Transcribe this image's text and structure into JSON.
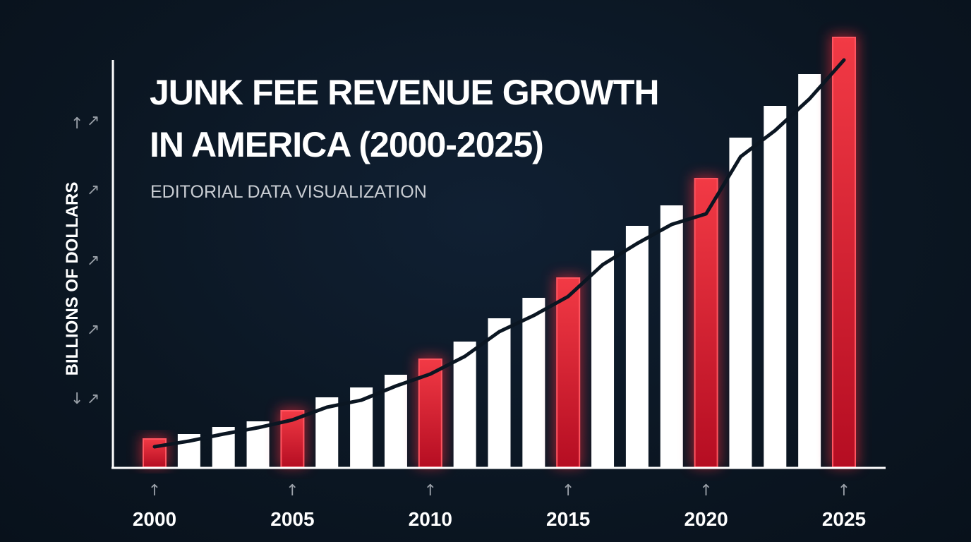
{
  "chart_data": {
    "type": "bar",
    "title_lines": [
      "JUNK FEE REVENUE GROWTH",
      "IN AMERICA (2000-2025)"
    ],
    "subtitle": "EDITORIAL DATA VISUALIZATION",
    "ylabel": "BILLIONS OF DOLLARS",
    "xlabel": "",
    "tick_labels": [
      "2000",
      "2005",
      "2010",
      "2015",
      "2020",
      "2025"
    ],
    "tick_every_n_bars": 4,
    "values": [
      40,
      47,
      57,
      65,
      80,
      99,
      113,
      131,
      153,
      178,
      211,
      240,
      268,
      307,
      342,
      371,
      409,
      467,
      512,
      557,
      609
    ],
    "highlighted_bars": [
      0,
      4,
      8,
      12,
      16,
      20
    ],
    "trend_line": [
      29,
      37,
      47,
      56,
      67,
      85,
      95,
      115,
      132,
      157,
      192,
      215,
      242,
      287,
      317,
      344,
      359,
      440,
      477,
      522,
      577
    ],
    "ylim": [
      0,
      620
    ],
    "grid": false,
    "colors": {
      "background": "#0b1622",
      "highlight": "#e0182d",
      "bar": "#ffffff",
      "line": "#0b1622",
      "axis": "#ffffff"
    }
  }
}
